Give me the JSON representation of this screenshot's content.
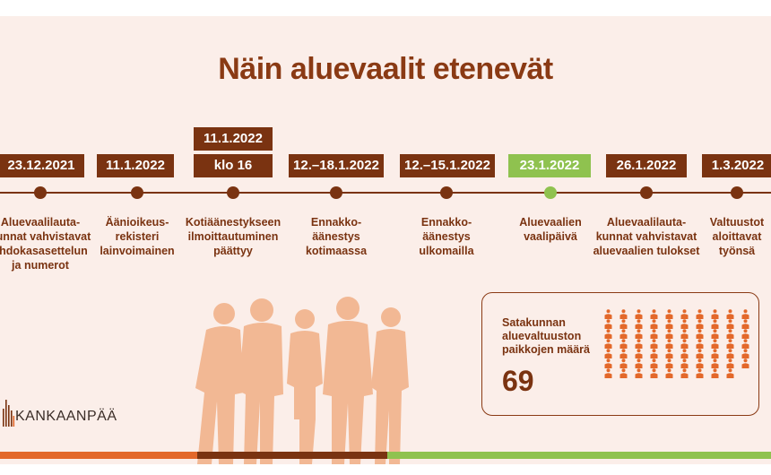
{
  "title": "Näin aluevaalit etenevät",
  "events": [
    {
      "date": "23.12.2021",
      "text": "Aluevaalilauta-\nkunnat vahvistavat\nehdokasasettelun\nja numerot",
      "highlight": false
    },
    {
      "date": "11.1.2022",
      "text": "Äänioikeus-\nrekisteri\nlainvoimainen",
      "highlight": false
    },
    {
      "date_top": "11.1.2022",
      "date": "klo 16",
      "text": "Kotiäänestykseen\nilmoittautuminen\npäättyy",
      "highlight": false
    },
    {
      "date": "12.–18.1.2022",
      "text": "Ennakko-\näänestys\nkotimaassa",
      "highlight": false
    },
    {
      "date": "12.–15.1.2022",
      "text": "Ennakko-\näänestys\nulkomailla",
      "highlight": false
    },
    {
      "date": "23.1.2022",
      "text": "Aluevaalien\nvaalipäivä",
      "highlight": true
    },
    {
      "date": "26.1.2022",
      "text": "Aluevaalilauta-\nkunnat vahvistavat\naluevaalien tulokset",
      "highlight": false
    },
    {
      "date": "1.3.2022",
      "text": "Valtuustot\naloittavat\ntyönsä",
      "highlight": false
    }
  ],
  "seats": {
    "label": "Satakunnan\naluevaltuuston\npaikkojen määrä",
    "count": "69",
    "icon": "person-icon"
  },
  "logo": {
    "text": "KANKAANPÄÄ",
    "icon": "kankaanpaa-logo-icon"
  },
  "colors": {
    "brown": "#7a3311",
    "green": "#8fc24f",
    "orange": "#e3682a",
    "background": "#fbeee9",
    "silhouette": "#f2b894"
  }
}
